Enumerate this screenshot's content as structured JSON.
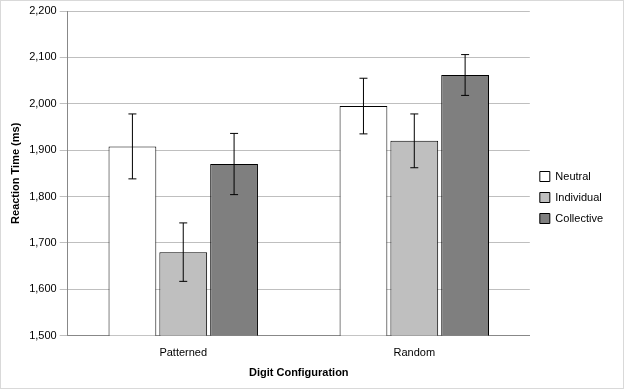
{
  "chart_data": {
    "type": "bar",
    "x_label": "Digit Configuration",
    "y_label": "Reaction Time (ms)",
    "categories": [
      "Patterned",
      "Random"
    ],
    "series": [
      {
        "name": "Neutral",
        "color": "#ffffff",
        "values": [
          1908,
          1995
        ],
        "errors": [
          70,
          60
        ]
      },
      {
        "name": "Individual",
        "color": "#bfbfbf",
        "values": [
          1680,
          1920
        ],
        "errors": [
          63,
          58
        ]
      },
      {
        "name": "Collective",
        "color": "#7f7f7f",
        "values": [
          1870,
          2062
        ],
        "errors": [
          66,
          44
        ]
      }
    ],
    "ylim": [
      1500,
      2200
    ],
    "yticks": [
      1500,
      1600,
      1700,
      1800,
      1900,
      2000,
      2100,
      2200
    ],
    "grid": true,
    "legend": "right"
  }
}
